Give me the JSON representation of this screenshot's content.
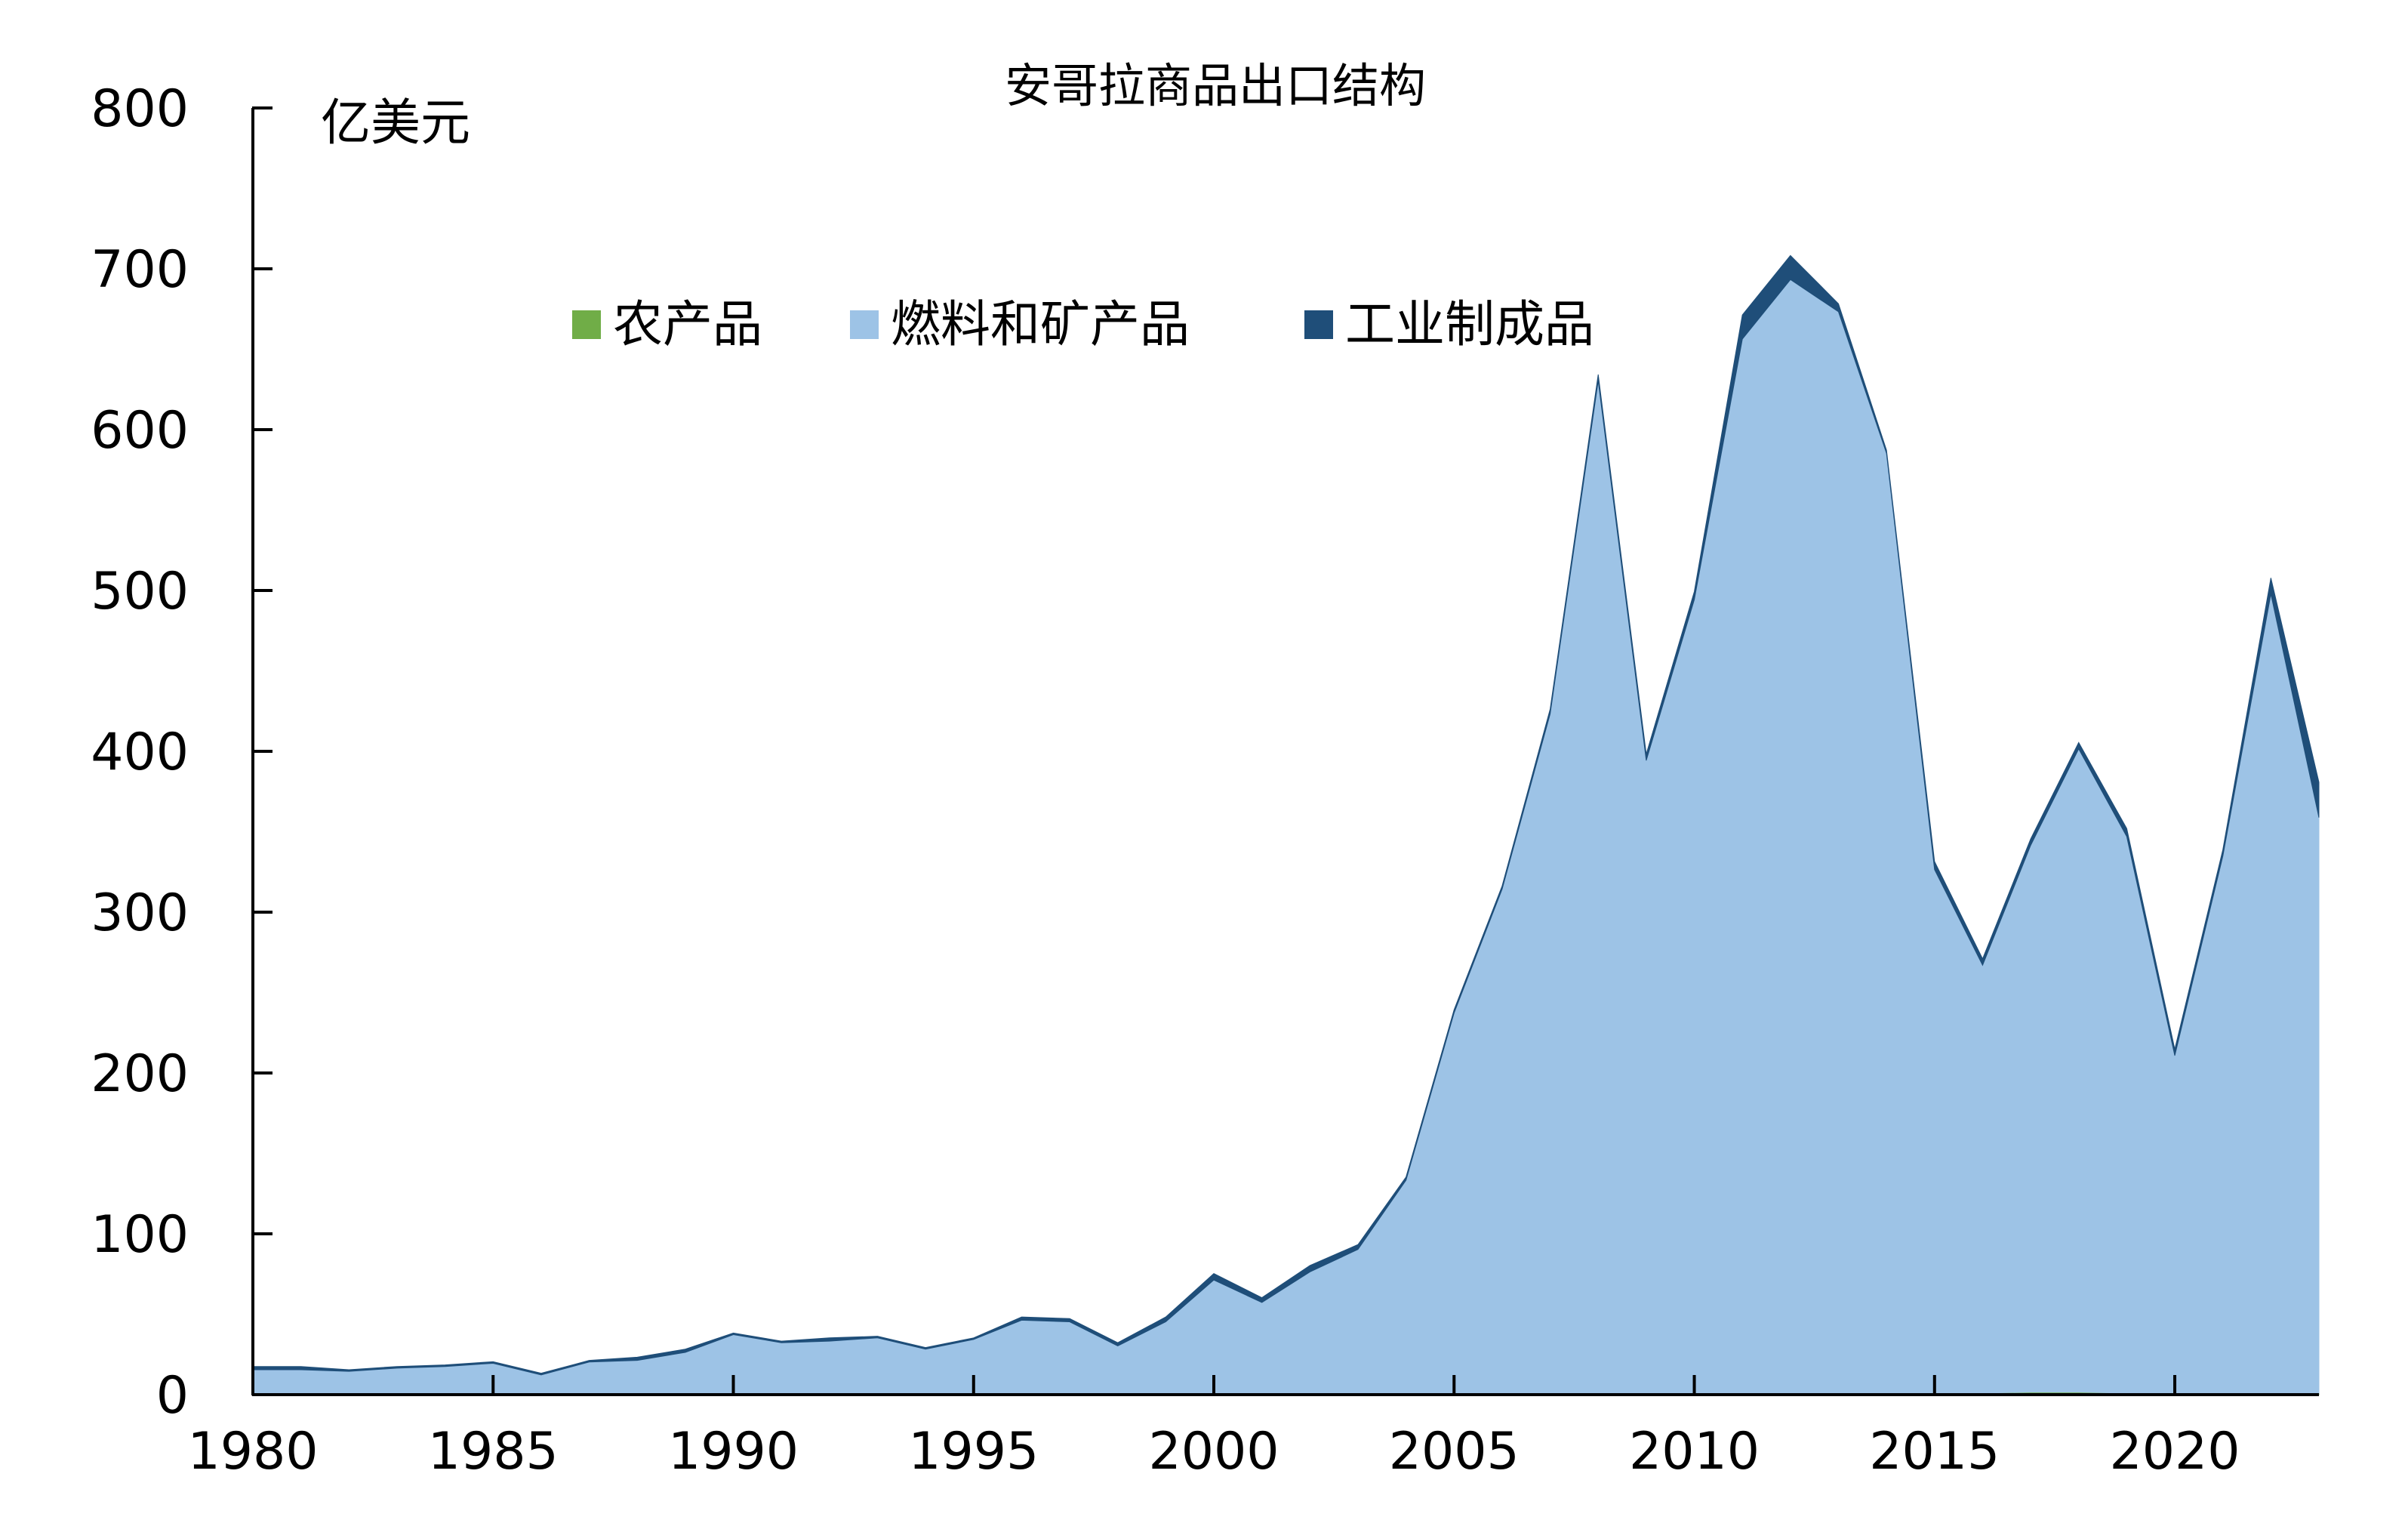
{
  "chart_data": {
    "type": "area",
    "stacked": true,
    "title": "安哥拉商品出口结构",
    "unit_label": "亿美元",
    "xlabel": "",
    "ylabel": "",
    "xlim": [
      1980,
      2023
    ],
    "ylim": [
      0,
      800
    ],
    "x_ticks": [
      "1980",
      "1985",
      "1990",
      "1995",
      "2000",
      "2005",
      "2010",
      "2015",
      "2020"
    ],
    "y_ticks": [
      "0",
      "100",
      "200",
      "300",
      "400",
      "500",
      "600",
      "700",
      "800"
    ],
    "grid": false,
    "legend_position": "top",
    "x": [
      1980,
      1981,
      1982,
      1983,
      1984,
      1985,
      1986,
      1987,
      1988,
      1989,
      1990,
      1991,
      1992,
      1993,
      1994,
      1995,
      1996,
      1997,
      1998,
      1999,
      2000,
      2001,
      2002,
      2003,
      2004,
      2005,
      2006,
      2007,
      2008,
      2009,
      2010,
      2011,
      2012,
      2013,
      2014,
      2015,
      2016,
      2017,
      2018,
      2019,
      2020,
      2021,
      2022,
      2023
    ],
    "series": [
      {
        "name": "农产品",
        "color": "#70ad47",
        "values": [
          0.5,
          0.5,
          0.5,
          0.5,
          0.5,
          0.5,
          0.3,
          0.3,
          0.3,
          0.3,
          0.3,
          0.3,
          0.3,
          0.3,
          0.3,
          0.3,
          0.3,
          0.3,
          0.3,
          0.3,
          0.3,
          0.3,
          0.3,
          0.3,
          0.3,
          0.3,
          0.3,
          0.3,
          0.3,
          0.3,
          0.3,
          0.3,
          0.3,
          0.3,
          0.3,
          0.5,
          1.0,
          1.5,
          1.5,
          1.0,
          0.8,
          0.8,
          0.8,
          0.8
        ]
      },
      {
        "name": "燃料和矿产品",
        "color": "#9dc3e6",
        "values": [
          15,
          15,
          14,
          16,
          17,
          19,
          12,
          20,
          21,
          26,
          37,
          32,
          33,
          35,
          28,
          34,
          46,
          45,
          30,
          45,
          71,
          57,
          76,
          90,
          133,
          237,
          314,
          423,
          630,
          394,
          494,
          656,
          693,
          673,
          585,
          326,
          266,
          340,
          400,
          346,
          210,
          334,
          497,
          358
        ]
      },
      {
        "name": "工业制成品",
        "color": "#1f4e79",
        "values": [
          2,
          2,
          1,
          1,
          1,
          1,
          1,
          1,
          2,
          2,
          1,
          1,
          2,
          1,
          1,
          1,
          2,
          2,
          2,
          3,
          4,
          3,
          4,
          3,
          2,
          2,
          2,
          3,
          4,
          4,
          5,
          15,
          15,
          5,
          2,
          5,
          4,
          4,
          4,
          5,
          4,
          4,
          10,
          22
        ]
      }
    ]
  }
}
